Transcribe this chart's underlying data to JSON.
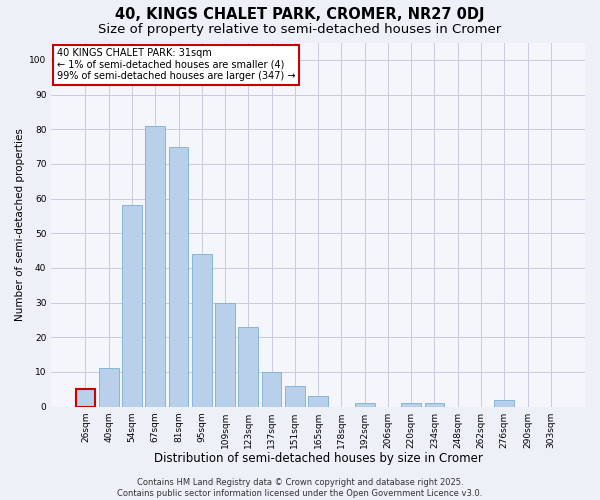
{
  "title": "40, KINGS CHALET PARK, CROMER, NR27 0DJ",
  "subtitle": "Size of property relative to semi-detached houses in Cromer",
  "xlabel": "Distribution of semi-detached houses by size in Cromer",
  "ylabel": "Number of semi-detached properties",
  "categories": [
    "26sqm",
    "40sqm",
    "54sqm",
    "67sqm",
    "81sqm",
    "95sqm",
    "109sqm",
    "123sqm",
    "137sqm",
    "151sqm",
    "165sqm",
    "178sqm",
    "192sqm",
    "206sqm",
    "220sqm",
    "234sqm",
    "248sqm",
    "262sqm",
    "276sqm",
    "290sqm",
    "303sqm"
  ],
  "values": [
    5,
    11,
    58,
    81,
    75,
    44,
    30,
    23,
    10,
    6,
    3,
    0,
    1,
    0,
    1,
    1,
    0,
    0,
    2,
    0,
    0
  ],
  "bar_color": "#b8d0ea",
  "bar_edge_color": "#7aafd4",
  "highlight_bar_index": 0,
  "highlight_bar_edge_color": "#cc0000",
  "annotation_box_text": "40 KINGS CHALET PARK: 31sqm\n← 1% of semi-detached houses are smaller (4)\n99% of semi-detached houses are larger (347) →",
  "annotation_box_edge_color": "#cc0000",
  "ylim": [
    0,
    105
  ],
  "yticks": [
    0,
    10,
    20,
    30,
    40,
    50,
    60,
    70,
    80,
    90,
    100
  ],
  "background_color": "#eef0f8",
  "plot_background_color": "#f5f6fc",
  "grid_color": "#c8cce0",
  "footer_line1": "Contains HM Land Registry data © Crown copyright and database right 2025.",
  "footer_line2": "Contains public sector information licensed under the Open Government Licence v3.0.",
  "title_fontsize": 10.5,
  "subtitle_fontsize": 9.5,
  "xlabel_fontsize": 8.5,
  "ylabel_fontsize": 7.5,
  "tick_fontsize": 6.5,
  "footer_fontsize": 6.0,
  "annotation_fontsize": 7.0
}
